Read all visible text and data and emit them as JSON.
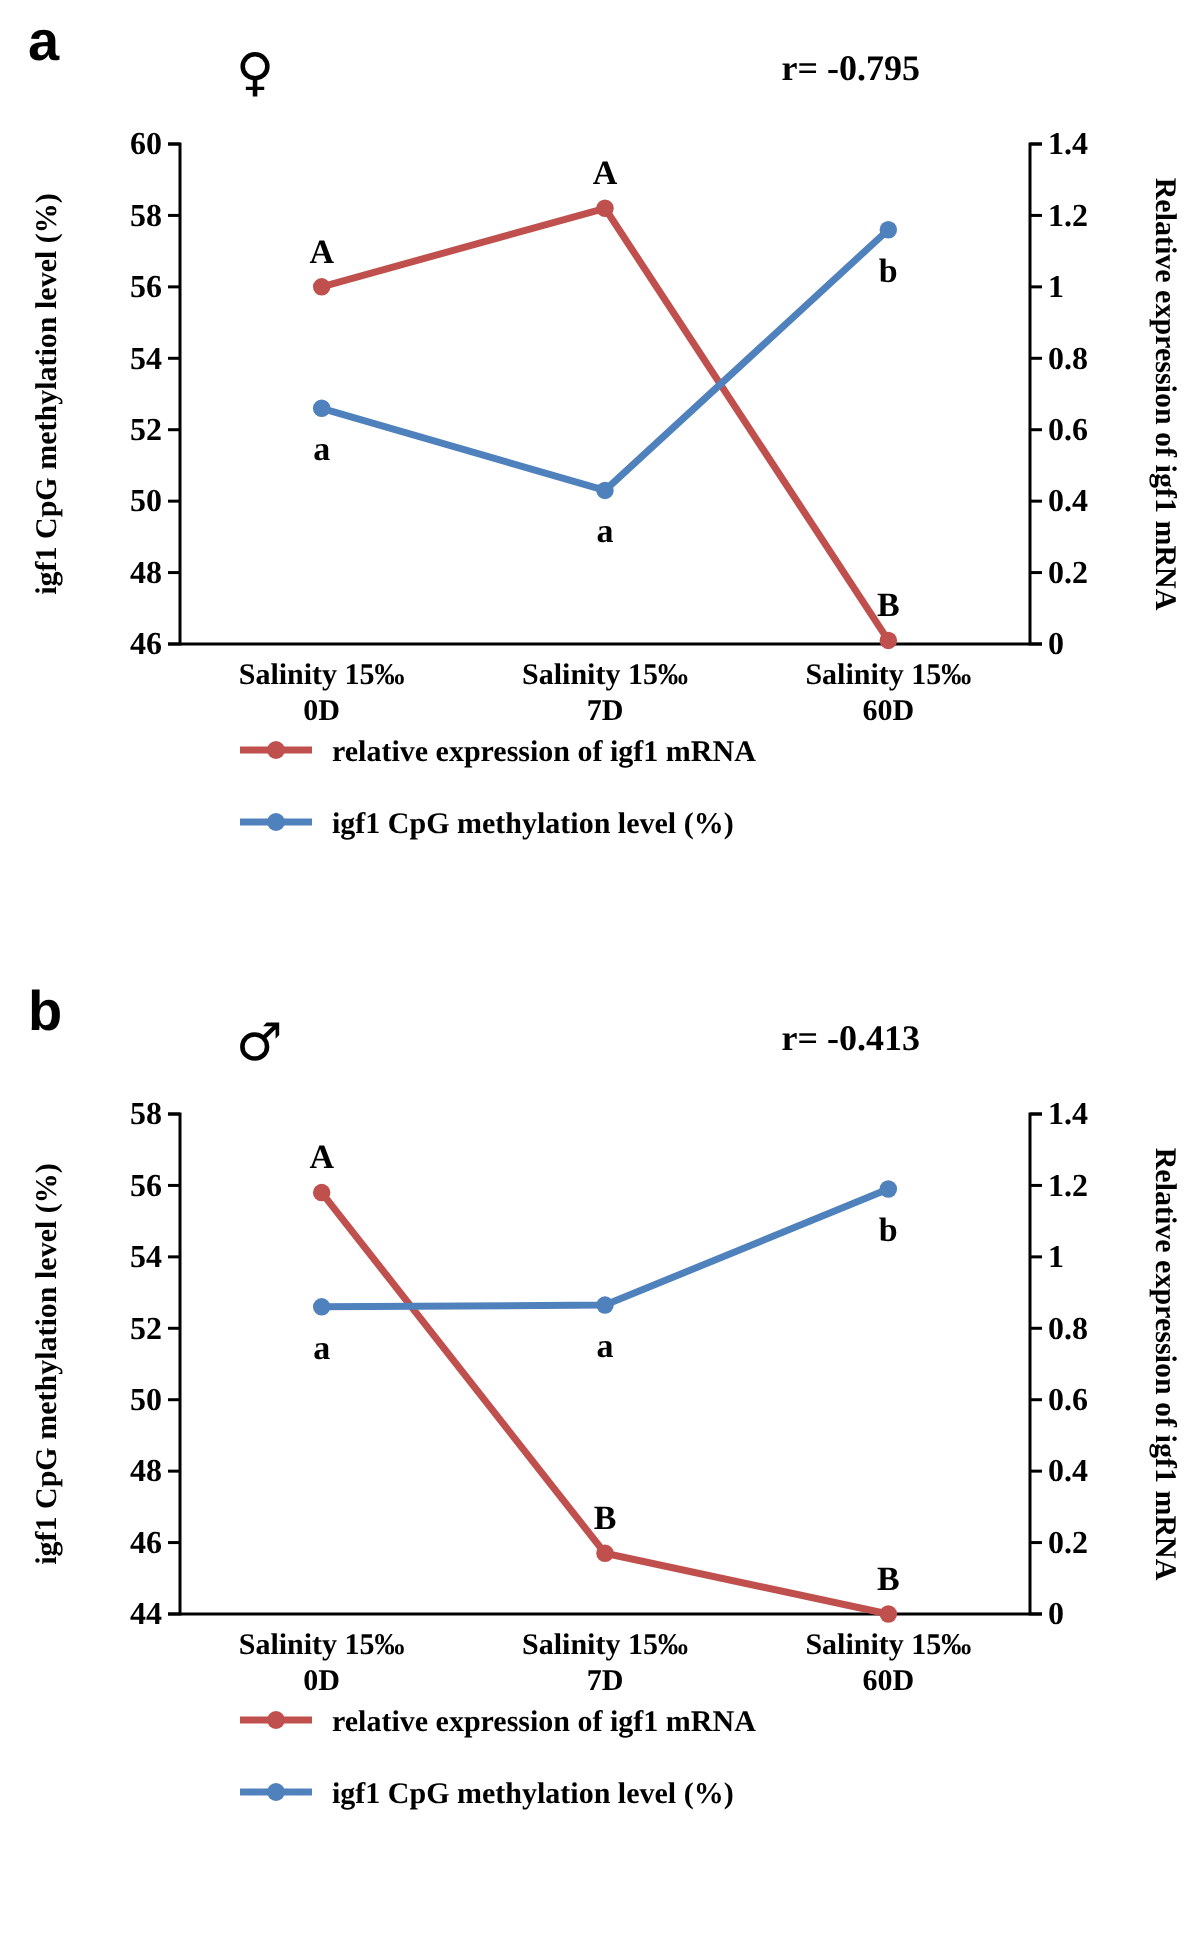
{
  "chart_data": [
    {
      "type": "line",
      "annotations": [
        "a",
        "♀",
        "r= -0.795",
        {
          "text": "A",
          "x": "Salinity 15‰\n0D",
          "y": 56.0
        },
        {
          "text": "A",
          "x": "Salinity 15‰\n7D",
          "y": 58.2
        },
        {
          "text": "B",
          "x": "Salinity 15‰\n60D",
          "y": 46.1
        },
        {
          "text": "a",
          "x": "Salinity 15‰\n0D",
          "y": 52.6
        },
        {
          "text": "a",
          "x": "Salinity 15‰\n7D",
          "y": 50.3
        },
        {
          "text": "b",
          "x": "Salinity 15‰\n60D",
          "y": 57.6
        }
      ],
      "ylabel": "igf1 CpG methylation level (%)",
      "y2label": "Relative expression of igf1 mRNA",
      "categories": [
        "Salinity 15‰\n0D",
        "Salinity 15‰\n7D",
        "Salinity 15‰\n60D"
      ],
      "series": [
        {
          "name": "relative expression of igf1 mRNA",
          "color": "#c0504d",
          "axis": "y2",
          "values": [
            1.0,
            1.22,
            0.01
          ]
        },
        {
          "name": "igf1 CpG methylation level (%)",
          "color": "#4f81bd",
          "values": [
            52.6,
            50.3,
            57.6
          ]
        }
      ],
      "ylim": [
        46,
        60
      ],
      "yticks": [
        46,
        48,
        50,
        52,
        54,
        56,
        58,
        60
      ],
      "y2lim": [
        0,
        1.4
      ],
      "y2ticks": [
        0,
        0.2,
        0.4,
        0.6,
        0.8,
        1,
        1.2,
        1.4
      ],
      "legend": "bottom",
      "marker": "circle",
      "grid": false
    },
    {
      "type": "line",
      "annotations": [
        "b",
        "♂",
        "r= -0.413",
        {
          "text": "A",
          "x": "Salinity 15‰\n0D",
          "y": 55.8
        },
        {
          "text": "B",
          "x": "Salinity 15‰\n7D",
          "y": 45.7
        },
        {
          "text": "B",
          "x": "Salinity 15‰\n60D",
          "y": 44.0
        },
        {
          "text": "a",
          "x": "Salinity 15‰\n0D",
          "y": 52.6
        },
        {
          "text": "a",
          "x": "Salinity 15‰\n7D",
          "y": 52.65
        },
        {
          "text": "b",
          "x": "Salinity 15‰\n60D",
          "y": 55.9
        }
      ],
      "ylabel": "igf1 CpG methylation level (%)",
      "y2label": "Relative expression of igf1 mRNA",
      "categories": [
        "Salinity 15‰\n0D",
        "Salinity 15‰\n7D",
        "Salinity 15‰\n60D"
      ],
      "series": [
        {
          "name": "relative expression of igf1 mRNA",
          "color": "#c0504d",
          "axis": "y2",
          "values": [
            1.18,
            0.17,
            0.0
          ]
        },
        {
          "name": "igf1 CpG methylation level (%)",
          "color": "#4f81bd",
          "values": [
            52.6,
            52.65,
            55.9
          ]
        }
      ],
      "ylim": [
        44,
        58
      ],
      "yticks": [
        44,
        46,
        48,
        50,
        52,
        54,
        56,
        58
      ],
      "y2lim": [
        0,
        1.4
      ],
      "y2ticks": [
        0,
        0.2,
        0.4,
        0.6,
        0.8,
        1,
        1.2,
        1.4
      ],
      "legend": "bottom",
      "marker": "circle",
      "grid": false
    }
  ]
}
